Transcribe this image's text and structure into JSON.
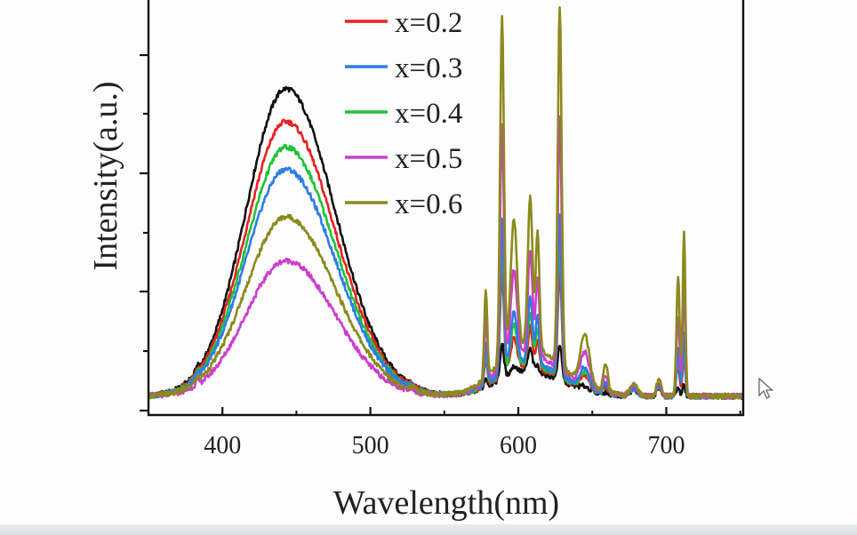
{
  "window": {
    "background": "#fdfdfd"
  },
  "chart_data": {
    "type": "line",
    "title": "",
    "xlabel": "Wavelength(nm)",
    "ylabel": "Intensity(a.u.)",
    "xlim": [
      350,
      752
    ],
    "ylim": [
      0,
      100
    ],
    "x_ticks": [
      400,
      500,
      600,
      700
    ],
    "y_tick_labels": "none",
    "grid": false,
    "legend_position": "top-center",
    "series": [
      {
        "name": "",
        "color": "#111111",
        "blue_peak": 84,
        "red_peaks": [
          10,
          2,
          7,
          1
        ],
        "rel_wide": 1.0
      },
      {
        "name": "x=0.2",
        "color": "#e8231f",
        "blue_peak": 75,
        "red_peaks": [
          30,
          9,
          13,
          4
        ],
        "rel_wide": 1.15
      },
      {
        "name": "x=0.3",
        "color": "#2f7ce6",
        "blue_peak": 62,
        "red_peaks": [
          45,
          15,
          21,
          6
        ],
        "rel_wide": 1.35
      },
      {
        "name": "x=0.4",
        "color": "#1fc23a",
        "blue_peak": 68,
        "red_peaks": [
          36,
          12,
          17,
          5
        ],
        "rel_wide": 1.25
      },
      {
        "name": "x=0.5",
        "color": "#cc3fcc",
        "blue_peak": 37,
        "red_peaks": [
          70,
          24,
          33,
          10
        ],
        "rel_wide": 1.7
      },
      {
        "name": "x=0.6",
        "color": "#8c8a1c",
        "blue_peak": 49,
        "red_peaks": [
          100,
          36,
          48,
          15
        ],
        "rel_wide": 2.0
      }
    ],
    "legend_series_order": [
      1,
      2,
      3,
      4,
      5
    ]
  }
}
